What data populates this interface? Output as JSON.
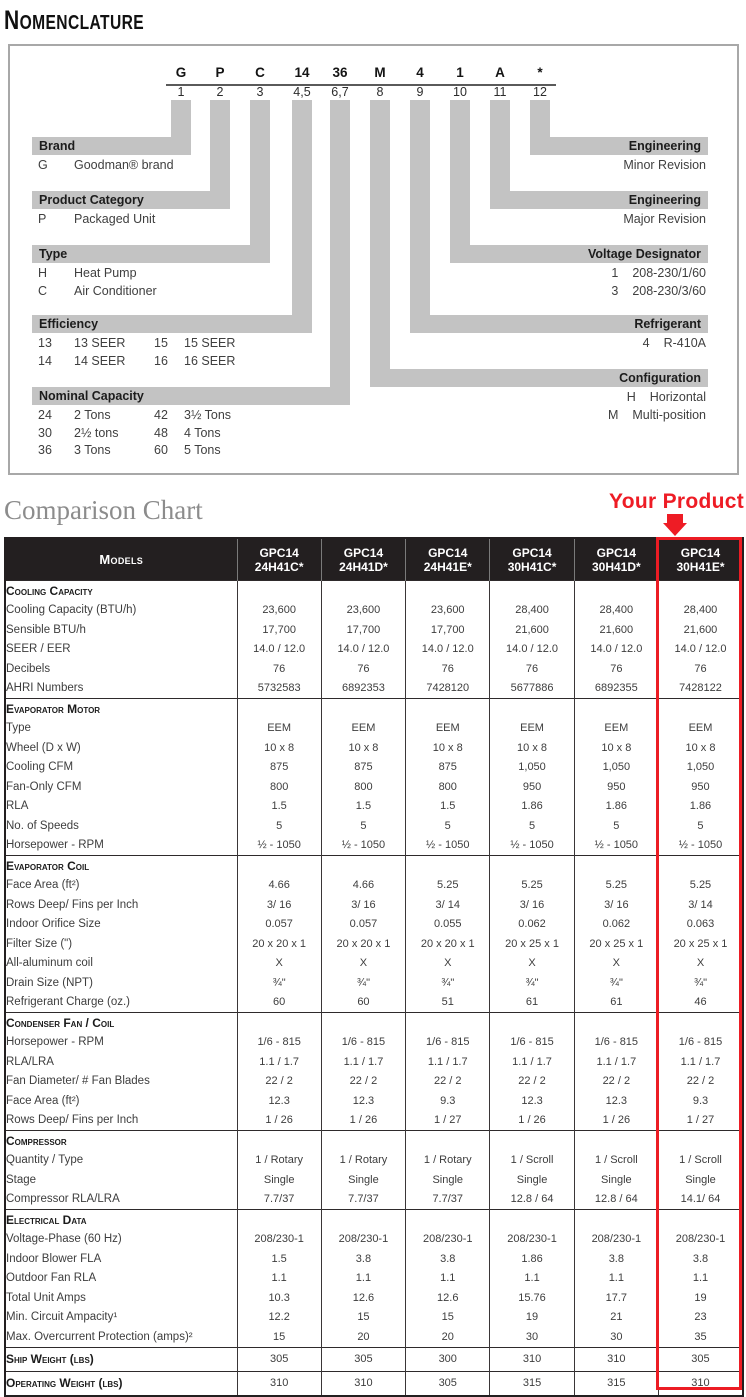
{
  "nomenclature": {
    "title": {
      "first": "N",
      "rest": "OMENCLATURE"
    },
    "columns": [
      {
        "c": "G",
        "n": "1"
      },
      {
        "c": "P",
        "n": "2"
      },
      {
        "c": "C",
        "n": "3"
      },
      {
        "c": "14",
        "n": "4,5"
      },
      {
        "c": "36",
        "n": "6,7"
      },
      {
        "c": "M",
        "n": "8"
      },
      {
        "c": "4",
        "n": "9"
      },
      {
        "c": "1",
        "n": "10"
      },
      {
        "c": "A",
        "n": "11"
      },
      {
        "c": "*",
        "n": "12"
      }
    ],
    "brand": {
      "title": "Brand",
      "rows": [
        [
          "G",
          "Goodman® brand"
        ]
      ]
    },
    "product_category": {
      "title": "Product Category",
      "rows": [
        [
          "P",
          "Packaged Unit"
        ]
      ]
    },
    "type": {
      "title": "Type",
      "rows": [
        [
          "H",
          "Heat Pump"
        ],
        [
          "C",
          "Air Conditioner"
        ]
      ]
    },
    "efficiency": {
      "title": "Efficiency",
      "rows": [
        [
          "13",
          "13 SEER",
          "15",
          "15 SEER"
        ],
        [
          "14",
          "14 SEER",
          "16",
          "16 SEER"
        ]
      ]
    },
    "nominal_capacity": {
      "title": "Nominal Capacity",
      "rows": [
        [
          "24",
          "2 Tons",
          "42",
          "3½ Tons"
        ],
        [
          "30",
          "2½ tons",
          "48",
          "4 Tons"
        ],
        [
          "36",
          "3 Tons",
          "60",
          "5 Tons"
        ]
      ]
    },
    "engineering_minor": {
      "title": "Engineering",
      "rows": [
        [
          "Minor Revision"
        ]
      ]
    },
    "engineering_major": {
      "title": "Engineering",
      "rows": [
        [
          "Major Revision"
        ]
      ]
    },
    "voltage": {
      "title": "Voltage Designator",
      "rows": [
        [
          "1",
          "208-230/1/60"
        ],
        [
          "3",
          "208-230/3/60"
        ]
      ]
    },
    "refrigerant": {
      "title": "Refrigerant",
      "rows": [
        [
          "4",
          "R-410A"
        ]
      ]
    },
    "configuration": {
      "title": "Configuration",
      "rows": [
        [
          "H",
          "Horizontal"
        ],
        [
          "M",
          "Multi-position"
        ]
      ]
    }
  },
  "comparison": {
    "title": "Comparison Chart",
    "annotation": {
      "label": "Your Product",
      "color": "#ee1c25",
      "highlight_border_color": "#ec1c24",
      "highlighted_model": "GPC14 30H41E*"
    }
  },
  "table": {
    "models_label": "Models",
    "models": [
      {
        "l1": "GPC14",
        "l2": "24H41C*"
      },
      {
        "l1": "GPC14",
        "l2": "24H41D*"
      },
      {
        "l1": "GPC14",
        "l2": "24H41E*"
      },
      {
        "l1": "GPC14",
        "l2": "30H41C*"
      },
      {
        "l1": "GPC14",
        "l2": "30H41D*"
      },
      {
        "l1": "GPC14",
        "l2": "30H41E*"
      }
    ],
    "sections": [
      {
        "title": "Cooling Capacity",
        "rows": [
          {
            "label": "Cooling Capacity (BTU/h)",
            "values": [
              "23,600",
              "23,600",
              "23,600",
              "28,400",
              "28,400",
              "28,400"
            ]
          },
          {
            "label": "Sensible BTU/h",
            "values": [
              "17,700",
              "17,700",
              "17,700",
              "21,600",
              "21,600",
              "21,600"
            ]
          },
          {
            "label": "SEER / EER",
            "values": [
              "14.0 / 12.0",
              "14.0 / 12.0",
              "14.0 / 12.0",
              "14.0 / 12.0",
              "14.0 / 12.0",
              "14.0 / 12.0"
            ]
          },
          {
            "label": "Decibels",
            "values": [
              "76",
              "76",
              "76",
              "76",
              "76",
              "76"
            ]
          },
          {
            "label": "AHRI Numbers",
            "values": [
              "5732583",
              "6892353",
              "7428120",
              "5677886",
              "6892355",
              "7428122"
            ]
          }
        ]
      },
      {
        "title": "Evaporator Motor",
        "rows": [
          {
            "label": "Type",
            "values": [
              "EEM",
              "EEM",
              "EEM",
              "EEM",
              "EEM",
              "EEM"
            ]
          },
          {
            "label": "Wheel (D x W)",
            "values": [
              "10 x 8",
              "10 x 8",
              "10 x 8",
              "10 x 8",
              "10 x 8",
              "10 x 8"
            ]
          },
          {
            "label": "Cooling CFM",
            "values": [
              "875",
              "875",
              "875",
              "1,050",
              "1,050",
              "1,050"
            ]
          },
          {
            "label": "Fan-Only CFM",
            "values": [
              "800",
              "800",
              "800",
              "950",
              "950",
              "950"
            ]
          },
          {
            "label": "RLA",
            "values": [
              "1.5",
              "1.5",
              "1.5",
              "1.86",
              "1.86",
              "1.86"
            ]
          },
          {
            "label": "No. of Speeds",
            "values": [
              "5",
              "5",
              "5",
              "5",
              "5",
              "5"
            ]
          },
          {
            "label": "Horsepower - RPM",
            "values": [
              "½ - 1050",
              "½ - 1050",
              "½ - 1050",
              "½ - 1050",
              "½ - 1050",
              "½ - 1050"
            ]
          }
        ]
      },
      {
        "title": "Evaporator Coil",
        "rows": [
          {
            "label": "Face Area (ft²)",
            "values": [
              "4.66",
              "4.66",
              "5.25",
              "5.25",
              "5.25",
              "5.25"
            ]
          },
          {
            "label": "Rows Deep/ Fins per Inch",
            "values": [
              "3/ 16",
              "3/ 16",
              "3/ 14",
              "3/ 16",
              "3/ 16",
              "3/ 14"
            ]
          },
          {
            "label": "Indoor Orifice Size",
            "values": [
              "0.057",
              "0.057",
              "0.055",
              "0.062",
              "0.062",
              "0.063"
            ]
          },
          {
            "label": "Filter Size (\")",
            "values": [
              "20 x 20 x 1",
              "20 x 20 x 1",
              "20 x 20 x 1",
              "20 x 25 x 1",
              "20 x 25 x 1",
              "20 x 25 x 1"
            ]
          },
          {
            "label": "All-aluminum coil",
            "values": [
              "X",
              "X",
              "X",
              "X",
              "X",
              "X"
            ]
          },
          {
            "label": "Drain Size (NPT)",
            "values": [
              "¾\"",
              "¾\"",
              "¾\"",
              "¾\"",
              "¾\"",
              "¾\""
            ]
          },
          {
            "label": "Refrigerant Charge (oz.)",
            "values": [
              "60",
              "60",
              "51",
              "61",
              "61",
              "46"
            ]
          }
        ]
      },
      {
        "title": "Condenser Fan / Coil",
        "rows": [
          {
            "label": "Horsepower - RPM",
            "values": [
              "1/6 - 815",
              "1/6 - 815",
              "1/6 - 815",
              "1/6 - 815",
              "1/6 - 815",
              "1/6 - 815"
            ]
          },
          {
            "label": "RLA/LRA",
            "values": [
              "1.1 / 1.7",
              "1.1 / 1.7",
              "1.1 / 1.7",
              "1.1 / 1.7",
              "1.1 / 1.7",
              "1.1 / 1.7"
            ]
          },
          {
            "label": "Fan Diameter/ # Fan Blades",
            "values": [
              "22 / 2",
              "22 / 2",
              "22 / 2",
              "22 / 2",
              "22 / 2",
              "22 / 2"
            ]
          },
          {
            "label": "Face Area (ft²)",
            "values": [
              "12.3",
              "12.3",
              "9.3",
              "12.3",
              "12.3",
              "9.3"
            ]
          },
          {
            "label": "Rows Deep/ Fins per Inch",
            "values": [
              "1 / 26",
              "1 / 26",
              "1 / 27",
              "1 / 26",
              "1 / 26",
              "1 / 27"
            ]
          }
        ]
      },
      {
        "title": "Compressor",
        "rows": [
          {
            "label": "Quantity / Type",
            "values": [
              "1 / Rotary",
              "1 / Rotary",
              "1 / Rotary",
              "1 / Scroll",
              "1 / Scroll",
              "1 / Scroll"
            ]
          },
          {
            "label": "Stage",
            "values": [
              "Single",
              "Single",
              "Single",
              "Single",
              "Single",
              "Single"
            ]
          },
          {
            "label": "Compressor RLA/LRA",
            "values": [
              "7.7/37",
              "7.7/37",
              "7.7/37",
              "12.8 / 64",
              "12.8 / 64",
              "14.1/ 64"
            ]
          }
        ]
      },
      {
        "title": "Electrical Data",
        "rows": [
          {
            "label": "Voltage-Phase (60 Hz)",
            "values": [
              "208/230-1",
              "208/230-1",
              "208/230-1",
              "208/230-1",
              "208/230-1",
              "208/230-1"
            ]
          },
          {
            "label": "Indoor Blower FLA",
            "values": [
              "1.5",
              "3.8",
              "3.8",
              "1.86",
              "3.8",
              "3.8"
            ]
          },
          {
            "label": "Outdoor Fan RLA",
            "values": [
              "1.1",
              "1.1",
              "1.1",
              "1.1",
              "1.1",
              "1.1"
            ]
          },
          {
            "label": "Total Unit Amps",
            "values": [
              "10.3",
              "12.6",
              "12.6",
              "15.76",
              "17.7",
              "19"
            ]
          },
          {
            "label": "Min. Circuit Ampacity¹",
            "values": [
              "12.2",
              "15",
              "15",
              "19",
              "21",
              "23"
            ]
          },
          {
            "label": "Max. Overcurrent Protection (amps)²",
            "values": [
              "15",
              "20",
              "20",
              "30",
              "30",
              "35"
            ]
          }
        ]
      }
    ],
    "footer_rows": [
      {
        "label": "Ship Weight (lbs)",
        "values": [
          "305",
          "305",
          "300",
          "310",
          "310",
          "305"
        ]
      },
      {
        "label": "Operating Weight (lbs)",
        "values": [
          "310",
          "310",
          "305",
          "315",
          "315",
          "310"
        ]
      }
    ]
  }
}
